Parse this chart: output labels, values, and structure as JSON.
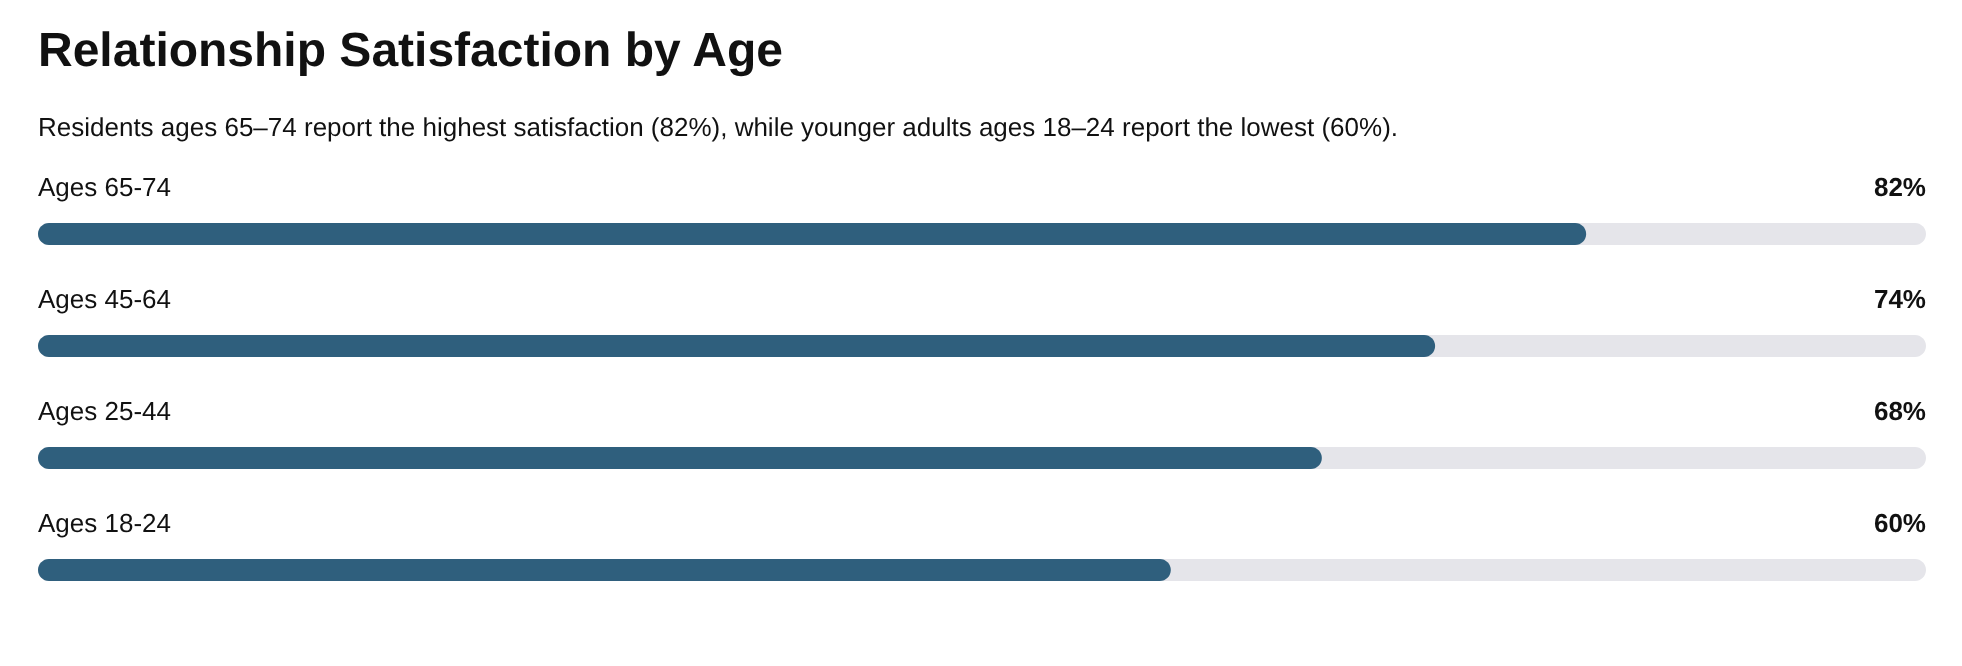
{
  "chart_data": {
    "type": "bar",
    "orientation": "horizontal",
    "title": "Relationship Satisfaction by Age",
    "subtitle": "Residents ages 65–74 report the highest satisfaction (82%), while younger adults ages 18–24 report the lowest (60%).",
    "categories": [
      "Ages 65-74",
      "Ages 45-64",
      "Ages 25-44",
      "Ages 18-24"
    ],
    "values": [
      82,
      74,
      68,
      60
    ],
    "value_labels": [
      "82%",
      "74%",
      "68%",
      "60%"
    ],
    "color": "#2f5f7d",
    "xlim": [
      0,
      100
    ]
  }
}
